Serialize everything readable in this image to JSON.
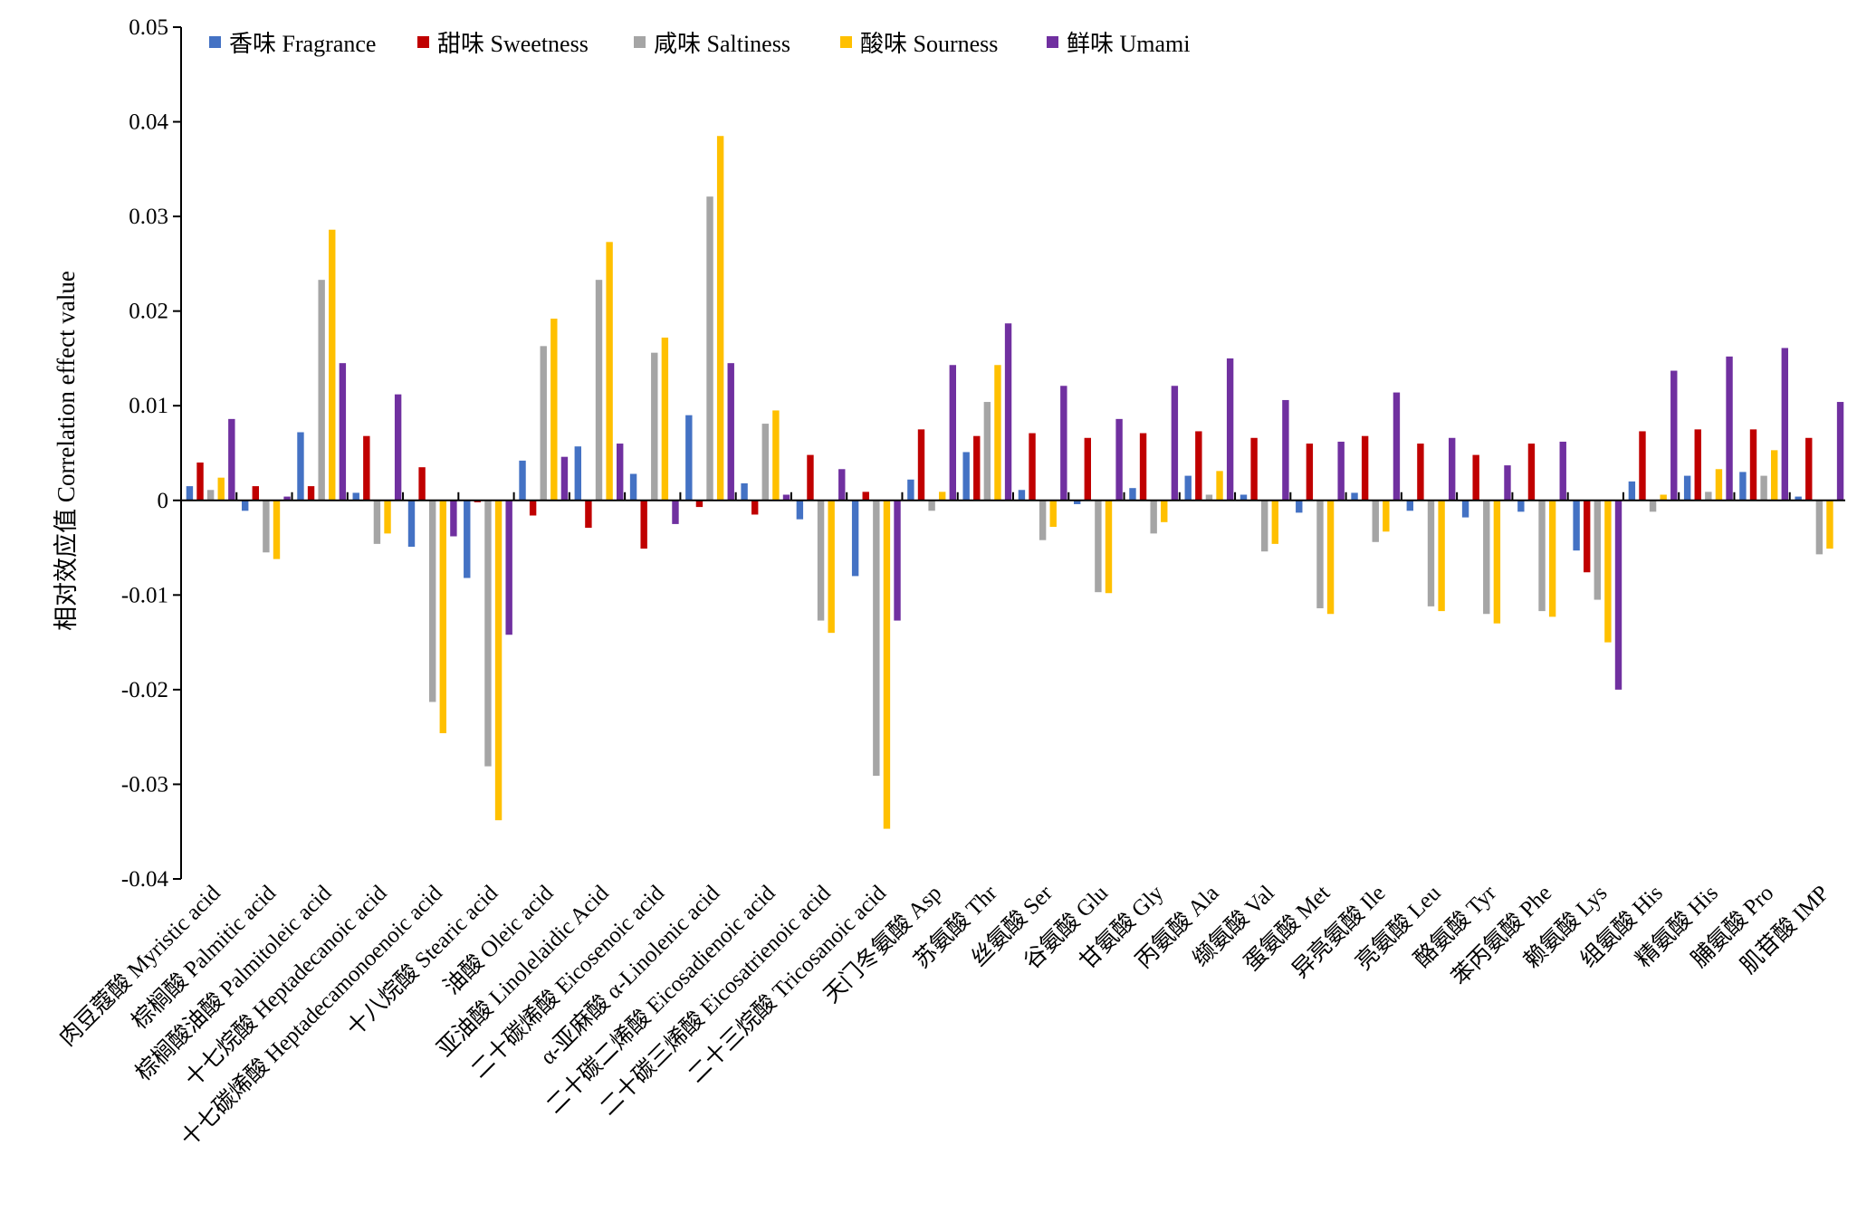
{
  "chart_data": {
    "type": "bar",
    "title": "",
    "xlabel": "",
    "ylabel": "相对效应值 Correlation effect value",
    "ylim": [
      -0.04,
      0.05
    ],
    "yticks": [
      -0.04,
      -0.03,
      -0.02,
      -0.01,
      0,
      0.01,
      0.02,
      0.03,
      0.04,
      0.05
    ],
    "ytick_labels": [
      "-0.04",
      "-0.03",
      "-0.02",
      "-0.01",
      "0",
      "0.01",
      "0.02",
      "0.03",
      "0.04",
      "0.05"
    ],
    "grid": false,
    "legend_position": "top-left",
    "categories": [
      "肉豆蔻酸 Myristic acid",
      "棕榈酸 Palmitic acid",
      "棕榈酸油酸 Palmitoleic acid",
      "十七烷酸 Heptadecanoic acid",
      "十七碳烯酸 Heptadecamonoenoic acid",
      "十八烷酸 Stearic acid",
      "油酸 Oleic acid",
      "亚油酸 Linolelaidic Acid",
      "二十碳烯酸 Eicosenoic acid",
      "α-亚麻酸 α-Linolenic acid",
      "二十碳二烯酸 Eicosadienoic acid",
      "二十碳三烯酸 Eicosatrienoic acid",
      "二十三烷酸 Tricosanoic acid",
      "天门冬氨酸 Asp",
      "苏氨酸 Thr",
      "丝氨酸 Ser",
      "谷氨酸 Glu",
      "甘氨酸 Gly",
      "丙氨酸 Ala",
      "缬氨酸 Val",
      "蛋氨酸 Met",
      "异亮氨酸 Ile",
      "亮氨酸 Leu",
      "酪氨酸 Tyr",
      "苯丙氨酸 Phe",
      "赖氨酸 Lys",
      "组氨酸 His",
      "精氨酸 His",
      "脯氨酸 Pro",
      "肌苷酸 IMP"
    ],
    "series": [
      {
        "name": "香味 Fragrance",
        "color": "#4472c4",
        "values": [
          0.0015,
          -0.0011,
          0.0072,
          0.0008,
          -0.0049,
          -0.0082,
          0.0042,
          0.0057,
          0.0028,
          0.009,
          0.0018,
          -0.002,
          -0.008,
          0.0022,
          0.0051,
          0.0011,
          -0.0004,
          0.0013,
          0.0026,
          0.0006,
          -0.0013,
          0.0008,
          -0.0011,
          -0.0018,
          -0.0012,
          -0.0053,
          0.002,
          0.0026,
          0.003,
          0.0004
        ]
      },
      {
        "name": "甜味 Sweetness",
        "color": "#c00000",
        "values": [
          0.004,
          0.0015,
          0.0015,
          0.0068,
          0.0035,
          -0.0002,
          -0.0016,
          -0.0029,
          -0.0051,
          -0.0007,
          -0.0015,
          0.0048,
          0.0009,
          0.0075,
          0.0068,
          0.0071,
          0.0066,
          0.0071,
          0.0073,
          0.0066,
          0.006,
          0.0068,
          0.006,
          0.0048,
          0.006,
          -0.0076,
          0.0073,
          0.0075,
          0.0075,
          0.0066
        ]
      },
      {
        "name": "咸味 Saltiness",
        "color": "#a5a5a5",
        "values": [
          0.0011,
          -0.0055,
          0.0233,
          -0.0046,
          -0.0213,
          -0.0281,
          0.0163,
          0.0233,
          0.0156,
          0.0321,
          0.0081,
          -0.0127,
          -0.0291,
          -0.0011,
          0.0104,
          -0.0042,
          -0.0097,
          -0.0035,
          0.0006,
          -0.0054,
          -0.0114,
          -0.0044,
          -0.0112,
          -0.012,
          -0.0117,
          -0.0105,
          -0.0012,
          0.0009,
          0.0026,
          -0.0057
        ]
      },
      {
        "name": "酸味 Sourness",
        "color": "#ffc000",
        "values": [
          0.0024,
          -0.0062,
          0.0286,
          -0.0035,
          -0.0246,
          -0.0338,
          0.0192,
          0.0273,
          0.0172,
          0.0385,
          0.0095,
          -0.014,
          -0.0347,
          0.0009,
          0.0143,
          -0.0028,
          -0.0098,
          -0.0023,
          0.0031,
          -0.0046,
          -0.012,
          -0.0033,
          -0.0117,
          -0.013,
          -0.0123,
          -0.015,
          0.0006,
          0.0033,
          0.0053,
          -0.0051
        ]
      },
      {
        "name": "鲜味 Umami",
        "color": "#7030a0",
        "values": [
          0.0086,
          0.0004,
          0.0145,
          0.0112,
          -0.0038,
          -0.0142,
          0.0046,
          0.006,
          -0.0025,
          0.0145,
          0.0006,
          0.0033,
          -0.0127,
          0.0143,
          0.0187,
          0.0121,
          0.0086,
          0.0121,
          0.015,
          0.0106,
          0.0062,
          0.0114,
          0.0066,
          0.0037,
          0.0062,
          -0.02,
          0.0137,
          0.0152,
          0.0161,
          0.0104
        ]
      }
    ]
  }
}
